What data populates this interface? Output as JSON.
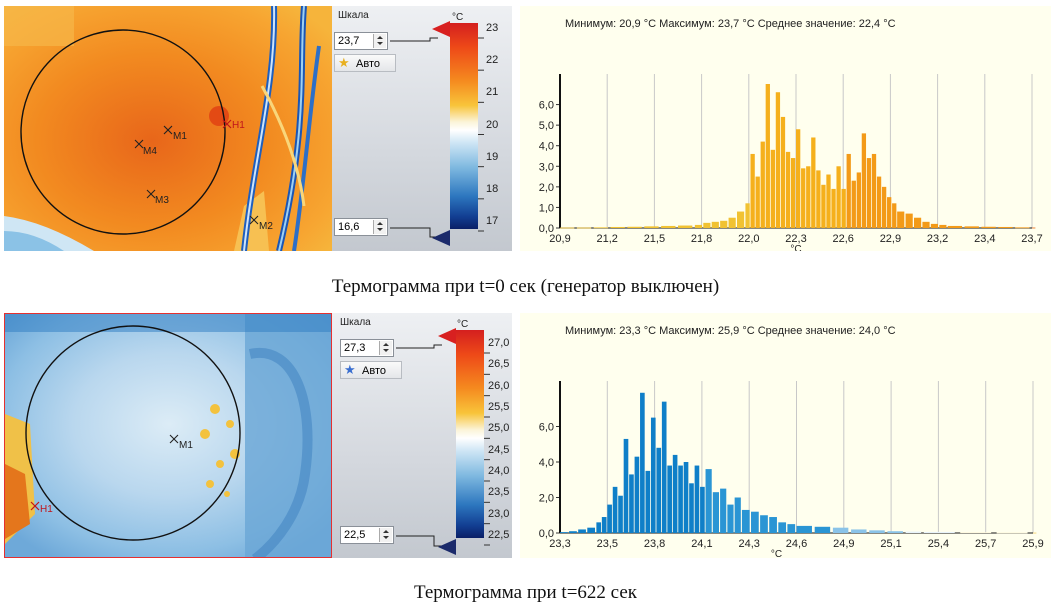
{
  "panels": [
    {
      "scale_label": "Шкала",
      "unit": "°C",
      "max_value": "23,7",
      "min_value": "16,6",
      "auto_label": "Авто",
      "bar_ticks": [
        "23",
        "22",
        "21",
        "20",
        "19",
        "18",
        "17"
      ],
      "markers": [
        "M1",
        "M4",
        "M3",
        "M2",
        "H1"
      ],
      "stats": "Минимум: 20,9  °C Максимум: 23,7  °C Среднее значение: 22,4  °C",
      "caption": "Термограмма при t=0 сек (генератор выключен)"
    },
    {
      "scale_label": "Шкала",
      "unit": "°C",
      "max_value": "27,3",
      "min_value": "22,5",
      "auto_label": "Авто",
      "bar_ticks": [
        "27,0",
        "26,5",
        "26,0",
        "25,5",
        "25,0",
        "24,5",
        "24,0",
        "23,5",
        "23,0",
        "22,5"
      ],
      "markers": [
        "M1",
        "H1"
      ],
      "stats": "Минимум: 23,3  °C Максимум: 25,9  °C Среднее значение: 24,0  °C",
      "caption": "Термограмма при t=622 сек"
    }
  ],
  "chart_data": [
    {
      "type": "bar",
      "xlabel": "°C",
      "x_ticks": [
        "20,9",
        "21,2",
        "21,5",
        "21,8",
        "22,0",
        "22,3",
        "22,6",
        "22,9",
        "23,2",
        "23,4",
        "23,7"
      ],
      "y_ticks": [
        "0,0",
        "1,0",
        "2,0",
        "3,0",
        "4,0",
        "5,0",
        "6,0"
      ],
      "ylim": [
        0,
        7.0
      ],
      "xlim": [
        20.9,
        23.7
      ],
      "x": [
        20.9,
        21.0,
        21.1,
        21.2,
        21.3,
        21.4,
        21.5,
        21.6,
        21.7,
        21.75,
        21.8,
        21.85,
        21.9,
        21.95,
        22.0,
        22.03,
        22.06,
        22.09,
        22.12,
        22.15,
        22.18,
        22.21,
        22.24,
        22.27,
        22.3,
        22.33,
        22.36,
        22.39,
        22.42,
        22.45,
        22.48,
        22.51,
        22.54,
        22.57,
        22.6,
        22.63,
        22.66,
        22.69,
        22.72,
        22.75,
        22.78,
        22.81,
        22.84,
        22.87,
        22.9,
        22.95,
        23.0,
        23.05,
        23.1,
        23.15,
        23.2,
        23.3,
        23.4,
        23.5,
        23.6,
        23.7
      ],
      "values": [
        0.02,
        0.02,
        0.03,
        0.05,
        0.06,
        0.08,
        0.1,
        0.12,
        0.15,
        0.25,
        0.3,
        0.35,
        0.5,
        0.8,
        1.2,
        3.6,
        2.5,
        4.2,
        7.0,
        3.8,
        6.6,
        5.4,
        3.7,
        3.4,
        4.8,
        2.9,
        3.0,
        4.4,
        2.8,
        2.1,
        2.6,
        1.9,
        3.0,
        1.9,
        3.6,
        2.3,
        2.7,
        4.6,
        3.4,
        3.6,
        2.5,
        2.0,
        1.5,
        1.2,
        0.8,
        0.7,
        0.5,
        0.3,
        0.2,
        0.15,
        0.1,
        0.08,
        0.06,
        0.05,
        0.03,
        0.02
      ]
    },
    {
      "type": "bar",
      "xlabel": "°C",
      "x_ticks": [
        "23,3",
        "23,5",
        "23,8",
        "24,1",
        "24,3",
        "24,6",
        "24,9",
        "25,1",
        "25,4",
        "25,7",
        "25,9"
      ],
      "y_ticks": [
        "0,0",
        "2,0",
        "4,0",
        "6,0"
      ],
      "ylim": [
        0,
        8.0
      ],
      "xlim": [
        23.3,
        25.9
      ],
      "x": [
        23.3,
        23.35,
        23.4,
        23.45,
        23.5,
        23.53,
        23.56,
        23.59,
        23.62,
        23.65,
        23.68,
        23.71,
        23.74,
        23.77,
        23.8,
        23.83,
        23.86,
        23.89,
        23.92,
        23.95,
        23.98,
        24.01,
        24.04,
        24.07,
        24.1,
        24.14,
        24.18,
        24.22,
        24.26,
        24.3,
        24.35,
        24.4,
        24.45,
        24.5,
        24.55,
        24.6,
        24.7,
        24.8,
        24.9,
        25.0,
        25.1,
        25.2,
        25.3,
        25.5,
        25.7,
        25.9
      ],
      "values": [
        0.05,
        0.1,
        0.2,
        0.3,
        0.6,
        0.9,
        1.6,
        2.6,
        2.1,
        5.3,
        3.3,
        4.3,
        7.9,
        3.5,
        6.5,
        4.8,
        7.4,
        3.8,
        4.4,
        3.8,
        4.0,
        2.8,
        3.8,
        2.6,
        3.6,
        2.3,
        2.5,
        1.6,
        2.0,
        1.3,
        1.2,
        1.0,
        0.9,
        0.6,
        0.5,
        0.4,
        0.35,
        0.3,
        0.2,
        0.15,
        0.1,
        0.08,
        0.06,
        0.04,
        0.03,
        0.02
      ]
    }
  ]
}
